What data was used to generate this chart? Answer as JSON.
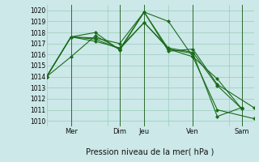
{
  "bg_color": "#cce8e8",
  "grid_color": "#99ccbb",
  "line_color": "#1a6b1a",
  "marker": "D",
  "marker_size": 2,
  "line_width": 0.8,
  "ylim": [
    1009.5,
    1020.5
  ],
  "yticks": [
    1010,
    1011,
    1012,
    1013,
    1014,
    1015,
    1016,
    1017,
    1018,
    1019,
    1020
  ],
  "xlabel": "Pression niveau de la mer( hPa )",
  "xlabel_fontsize": 7,
  "tick_fontsize": 5.5,
  "day_lines_x": [
    2.0,
    6.0,
    8.0,
    12.0,
    16.0
  ],
  "day_labels": [
    [
      "Mer",
      2.0
    ],
    [
      "Dim",
      6.0
    ],
    [
      "Jeu",
      8.0
    ],
    [
      "Ven",
      12.0
    ],
    [
      "Sam",
      16.0
    ]
  ],
  "xlim": [
    0,
    17
  ],
  "series": [
    {
      "x": [
        0,
        2,
        4,
        6,
        8,
        10,
        12,
        14,
        16
      ],
      "y": [
        1014.0,
        1015.8,
        1017.7,
        1016.5,
        1019.85,
        1019.0,
        1015.8,
        1013.8,
        1011.1
      ]
    },
    {
      "x": [
        0,
        2,
        4,
        6,
        8,
        10,
        12,
        14,
        16
      ],
      "y": [
        1014.0,
        1017.6,
        1018.0,
        1016.4,
        1019.85,
        1016.5,
        1016.1,
        1010.4,
        1011.2
      ]
    },
    {
      "x": [
        0,
        2,
        4,
        6,
        8,
        10,
        12,
        14,
        17
      ],
      "y": [
        1014.0,
        1017.6,
        1017.5,
        1017.0,
        1019.85,
        1016.3,
        1016.5,
        1013.3,
        1011.2
      ]
    },
    {
      "x": [
        0,
        2,
        4,
        6,
        8,
        10,
        12,
        14,
        17
      ],
      "y": [
        1014.0,
        1017.6,
        1017.2,
        1016.6,
        1018.9,
        1016.5,
        1015.8,
        1011.0,
        1010.2
      ]
    },
    {
      "x": [
        0,
        2,
        4,
        6,
        8,
        10,
        12,
        14,
        16
      ],
      "y": [
        1014.0,
        1017.6,
        1017.4,
        1016.5,
        1018.9,
        1016.6,
        1016.2,
        1013.2,
        1011.1
      ]
    }
  ]
}
